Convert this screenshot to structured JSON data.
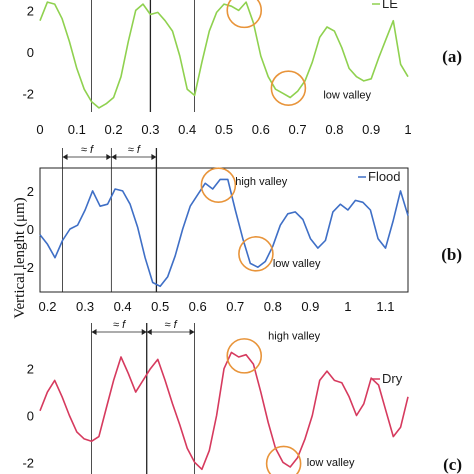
{
  "chart_data": [
    {
      "type": "line",
      "panel_label": "(a)",
      "legend": "LE",
      "color": "#8fd14f",
      "xlim": [
        0,
        1
      ],
      "ylim": [
        -2.9,
        2.5
      ],
      "x_ticks": [
        0,
        0.1,
        0.2,
        0.3,
        0.4,
        0.5,
        0.6,
        0.7,
        0.8,
        0.9,
        1
      ],
      "x_tick_labels": [
        "0",
        "0.1",
        "0.2",
        "0.3",
        "0.4",
        "0.5",
        "0.6",
        "0.7",
        "0.8",
        "0.9",
        "1"
      ],
      "y_ticks": [
        2,
        0,
        -2
      ],
      "y_tick_labels": [
        "2",
        "0",
        "-2"
      ],
      "vlines": [
        0.14,
        0.3,
        0.42
      ],
      "vlines_bold": [
        0.3
      ],
      "annotations": [
        {
          "text": "low valley",
          "x": 0.77,
          "y": -2.25
        }
      ],
      "circles": [
        {
          "x": 0.555,
          "y": 2.0
        },
        {
          "x": 0.675,
          "y": -1.75
        }
      ],
      "x": [
        0,
        0.02,
        0.04,
        0.06,
        0.08,
        0.1,
        0.12,
        0.14,
        0.16,
        0.18,
        0.2,
        0.22,
        0.24,
        0.26,
        0.28,
        0.3,
        0.32,
        0.34,
        0.36,
        0.38,
        0.4,
        0.42,
        0.44,
        0.46,
        0.48,
        0.5,
        0.52,
        0.54,
        0.56,
        0.58,
        0.6,
        0.62,
        0.64,
        0.66,
        0.68,
        0.7,
        0.72,
        0.74,
        0.76,
        0.78,
        0.8,
        0.82,
        0.84,
        0.86,
        0.88,
        0.9,
        0.92,
        0.94,
        0.96,
        0.98,
        1
      ],
      "y": [
        1.5,
        2.4,
        2.3,
        1.6,
        0.5,
        -0.8,
        -1.8,
        -2.4,
        -2.7,
        -2.5,
        -2.2,
        -1.2,
        0.5,
        2.0,
        2.3,
        1.8,
        1.9,
        1.5,
        1.0,
        -0.2,
        -1.8,
        -2.1,
        -0.5,
        1.0,
        1.9,
        2.3,
        2.2,
        2.0,
        2.4,
        1.4,
        -0.2,
        -1.2,
        -1.8,
        -2.0,
        -2.2,
        -1.9,
        -1.4,
        -0.5,
        0.7,
        1.2,
        1.0,
        0.2,
        -0.8,
        -1.2,
        -1.4,
        -1.3,
        -0.3,
        0.6,
        1.5,
        -0.6,
        -1.2
      ]
    },
    {
      "type": "line",
      "panel_label": "(b)",
      "legend": "Flood",
      "color": "#3f6fc6",
      "xlim": [
        0.18,
        1.16
      ],
      "ylim": [
        -3.3,
        3.2
      ],
      "x_ticks": [
        0.2,
        0.3,
        0.4,
        0.5,
        0.6,
        0.7,
        0.8,
        0.9,
        1,
        1.1
      ],
      "x_tick_labels": [
        "0.2",
        "0.3",
        "0.4",
        "0.5",
        "0.6",
        "0.7",
        "0.8",
        "0.9",
        "1",
        "1.1"
      ],
      "y_ticks": [
        2,
        0,
        -2
      ],
      "y_tick_labels": [
        "2",
        "0",
        "-2"
      ],
      "vlines": [
        0.24,
        0.37,
        0.49
      ],
      "vlines_bold": [
        0.49
      ],
      "dim_label": "≈ f",
      "dim_intervals": [
        [
          0.24,
          0.37
        ],
        [
          0.37,
          0.49
        ]
      ],
      "annotations": [
        {
          "text": "high valley",
          "x": 0.7,
          "y": 2.3
        },
        {
          "text": "low valley",
          "x": 0.8,
          "y": -2.0
        }
      ],
      "circles": [
        {
          "x": 0.655,
          "y": 2.3
        },
        {
          "x": 0.755,
          "y": -1.3
        }
      ],
      "x": [
        0.18,
        0.2,
        0.22,
        0.24,
        0.26,
        0.28,
        0.3,
        0.32,
        0.34,
        0.36,
        0.38,
        0.4,
        0.42,
        0.44,
        0.46,
        0.48,
        0.5,
        0.52,
        0.54,
        0.56,
        0.58,
        0.6,
        0.62,
        0.64,
        0.66,
        0.68,
        0.7,
        0.72,
        0.74,
        0.76,
        0.78,
        0.8,
        0.82,
        0.84,
        0.86,
        0.88,
        0.9,
        0.92,
        0.94,
        0.96,
        0.98,
        1.0,
        1.02,
        1.04,
        1.06,
        1.08,
        1.1,
        1.12,
        1.14,
        1.16
      ],
      "y": [
        -0.3,
        -0.8,
        -1.5,
        -0.6,
        0.0,
        0.2,
        1.0,
        2.0,
        1.2,
        1.3,
        2.1,
        2.0,
        1.3,
        0.1,
        -1.5,
        -2.8,
        -3.0,
        -2.5,
        -1.4,
        0.0,
        1.2,
        1.8,
        2.4,
        2.1,
        2.6,
        2.6,
        1.0,
        -0.5,
        -1.8,
        -2.0,
        -1.7,
        -0.9,
        0.2,
        0.8,
        0.9,
        0.5,
        -0.5,
        -1.0,
        -0.6,
        0.9,
        1.3,
        1.0,
        1.5,
        1.4,
        1.0,
        -0.5,
        -1.0,
        0.4,
        2.0,
        0.7
      ]
    },
    {
      "type": "line",
      "panel_label": "(c)",
      "legend": "Dry",
      "color": "#d63a5e",
      "xlim": [
        0,
        1
      ],
      "ylim": [
        -2.5,
        3.1
      ],
      "y_ticks": [
        2,
        0,
        -2
      ],
      "y_tick_labels": [
        "2",
        "0",
        "-2"
      ],
      "vlines": [
        0.14,
        0.29,
        0.42
      ],
      "vlines_bold": [
        0.29
      ],
      "dim_label": "≈ f",
      "dim_intervals": [
        [
          0.14,
          0.29
        ],
        [
          0.29,
          0.42
        ]
      ],
      "annotations": [
        {
          "text": "high valley",
          "x": 0.62,
          "y": 3.25
        },
        {
          "text": "low valley",
          "x": 0.725,
          "y": -2.15
        }
      ],
      "circles": [
        {
          "x": 0.555,
          "y": 2.55
        },
        {
          "x": 0.662,
          "y": -2.05
        }
      ],
      "x": [
        0,
        0.02,
        0.04,
        0.06,
        0.08,
        0.1,
        0.12,
        0.14,
        0.16,
        0.18,
        0.2,
        0.22,
        0.24,
        0.26,
        0.28,
        0.3,
        0.32,
        0.34,
        0.36,
        0.38,
        0.4,
        0.42,
        0.44,
        0.46,
        0.48,
        0.5,
        0.52,
        0.54,
        0.56,
        0.58,
        0.6,
        0.62,
        0.64,
        0.66,
        0.68,
        0.7,
        0.72,
        0.74,
        0.76,
        0.78,
        0.8,
        0.82,
        0.84,
        0.86,
        0.88,
        0.9,
        0.92,
        0.94,
        0.96,
        0.98,
        1
      ],
      "y": [
        0.2,
        1.0,
        1.5,
        0.8,
        0.0,
        -0.7,
        -1.0,
        -1.1,
        -0.9,
        0.3,
        1.5,
        2.5,
        1.8,
        1.0,
        1.5,
        2.0,
        2.4,
        1.5,
        0.5,
        -0.4,
        -1.4,
        -2.0,
        -2.3,
        -1.5,
        0.0,
        2.0,
        2.7,
        2.5,
        2.6,
        2.2,
        1.0,
        -0.3,
        -1.4,
        -2.0,
        -2.2,
        -1.8,
        -1.0,
        0.0,
        1.5,
        1.9,
        1.5,
        1.4,
        0.8,
        0.0,
        0.5,
        1.6,
        1.3,
        0.2,
        -0.9,
        -0.5,
        0.8
      ]
    }
  ],
  "shared": {
    "y_axis_label": "Vertical lenght (μm)"
  }
}
